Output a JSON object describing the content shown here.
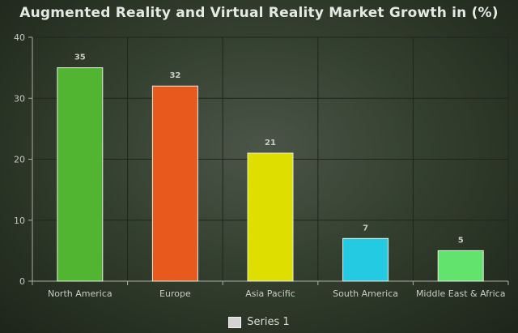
{
  "chart_data": {
    "type": "bar",
    "title": "Augmented Reality and Virtual Reality Market Growth in (%)",
    "categories": [
      "North America",
      "Europe",
      "Asia Pacific",
      "South America",
      "Middle East & Africa"
    ],
    "series": [
      {
        "name": "Series 1",
        "values": [
          35,
          32,
          21,
          7,
          5
        ]
      }
    ],
    "bar_colors": [
      "#52b531",
      "#e8591d",
      "#dede00",
      "#24c9e2",
      "#62e36e"
    ],
    "ylim": [
      0,
      40
    ],
    "yticks": [
      0,
      10,
      20,
      30,
      40
    ],
    "grid": true,
    "legend_position": "bottom"
  }
}
